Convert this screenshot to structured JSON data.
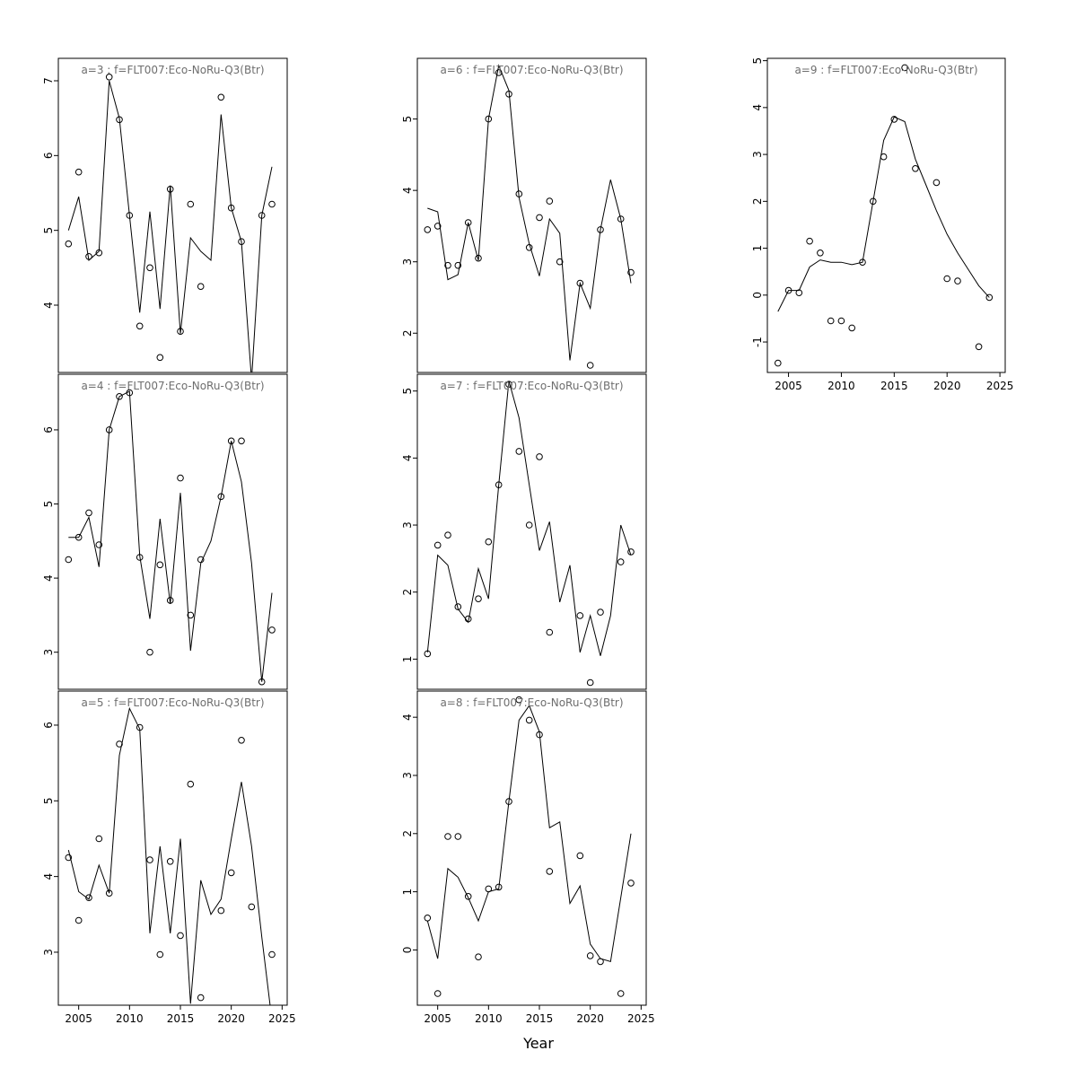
{
  "page": {
    "background": "#ffffff"
  },
  "chart_data": {
    "type": "line",
    "subtype": "trellis-multi-panel-line-scatter",
    "xlabel": "Year",
    "x": [
      2004,
      2005,
      2006,
      2007,
      2008,
      2009,
      2010,
      2011,
      2012,
      2013,
      2014,
      2015,
      2016,
      2017,
      2018,
      2019,
      2020,
      2021,
      2022,
      2023,
      2024
    ],
    "xlim": [
      2003,
      2025.5
    ],
    "xticks": [
      2005,
      2010,
      2015,
      2020,
      2025
    ],
    "colors": {
      "line": "#000000",
      "point": "#000000",
      "axis": "#000000",
      "title": "#6e6e6e",
      "tick_label": "#000000"
    },
    "panels": [
      {
        "id": "a3",
        "title": "a=3  :  f=FLT007:Eco-NoRu-Q3(Btr)",
        "row": 0,
        "col": 0,
        "ylim": [
          3.1,
          7.3
        ],
        "yticks": [
          4,
          5,
          6,
          7
        ],
        "show_x_labels": false,
        "points": [
          4.82,
          5.78,
          4.65,
          4.7,
          7.05,
          6.48,
          5.2,
          3.72,
          4.5,
          3.3,
          5.55,
          3.65,
          5.35,
          4.25,
          null,
          6.78,
          5.3,
          4.85,
          null,
          5.2,
          5.35
        ],
        "line": [
          5.0,
          5.45,
          4.6,
          4.72,
          7.0,
          6.5,
          5.2,
          3.9,
          5.25,
          3.95,
          5.6,
          3.62,
          4.9,
          4.72,
          4.6,
          6.55,
          5.3,
          4.85,
          3.0,
          5.2,
          5.85
        ]
      },
      {
        "id": "a4",
        "title": "a=4  :  f=FLT007:Eco-NoRu-Q3(Btr)",
        "row": 1,
        "col": 0,
        "ylim": [
          2.5,
          6.75
        ],
        "yticks": [
          3,
          4,
          5,
          6
        ],
        "show_x_labels": false,
        "points": [
          4.25,
          4.55,
          4.88,
          4.45,
          6.0,
          6.45,
          6.5,
          4.28,
          3.0,
          4.18,
          3.7,
          5.35,
          3.5,
          4.25,
          null,
          5.1,
          5.85,
          5.85,
          null,
          2.6,
          3.3
        ],
        "line": [
          4.55,
          4.55,
          4.82,
          4.15,
          6.0,
          6.45,
          6.52,
          4.3,
          3.45,
          4.8,
          3.65,
          5.15,
          3.02,
          4.2,
          4.5,
          5.1,
          5.85,
          5.3,
          4.2,
          2.6,
          3.8
        ]
      },
      {
        "id": "a5",
        "title": "a=5  :  f=FLT007:Eco-NoRu-Q3(Btr)",
        "row": 2,
        "col": 0,
        "ylim": [
          2.3,
          6.45
        ],
        "yticks": [
          3,
          4,
          5,
          6
        ],
        "show_x_labels": true,
        "points": [
          4.25,
          3.42,
          3.72,
          4.5,
          3.78,
          5.75,
          null,
          5.97,
          4.22,
          2.97,
          4.2,
          3.22,
          5.22,
          2.4,
          null,
          3.55,
          4.05,
          5.8,
          3.6,
          null,
          2.97
        ],
        "line": [
          4.35,
          3.8,
          3.7,
          4.15,
          3.78,
          5.6,
          6.22,
          5.95,
          3.25,
          4.4,
          3.25,
          4.5,
          2.32,
          3.95,
          3.5,
          3.7,
          4.5,
          5.25,
          4.4,
          3.2,
          2.1
        ]
      },
      {
        "id": "a6",
        "title": "a=6  :  f=FLT007:Eco-NoRu-Q3(Btr)",
        "row": 0,
        "col": 1,
        "ylim": [
          1.45,
          5.85
        ],
        "yticks": [
          2,
          3,
          4,
          5
        ],
        "show_x_labels": false,
        "points": [
          3.45,
          3.5,
          2.95,
          2.95,
          3.55,
          3.05,
          5.0,
          5.65,
          5.35,
          3.95,
          3.2,
          3.62,
          3.85,
          3.0,
          null,
          2.7,
          1.55,
          3.45,
          null,
          3.6,
          2.85
        ],
        "line": [
          3.75,
          3.7,
          2.75,
          2.82,
          3.55,
          3.02,
          5.0,
          5.75,
          5.4,
          3.9,
          3.25,
          2.8,
          3.6,
          3.4,
          1.62,
          2.7,
          2.35,
          3.45,
          4.15,
          3.6,
          2.7
        ]
      },
      {
        "id": "a7",
        "title": "a=7  :  f=FLT007:Eco-NoRu-Q3(Btr)",
        "row": 1,
        "col": 1,
        "ylim": [
          0.55,
          5.25
        ],
        "yticks": [
          1,
          2,
          3,
          4,
          5
        ],
        "show_x_labels": false,
        "points": [
          1.08,
          2.7,
          2.85,
          1.78,
          1.6,
          1.9,
          2.75,
          3.6,
          5.1,
          4.1,
          3.0,
          4.02,
          1.4,
          null,
          null,
          1.65,
          0.65,
          1.7,
          null,
          2.45,
          2.6
        ],
        "line": [
          1.1,
          2.55,
          2.4,
          1.75,
          1.55,
          2.35,
          1.9,
          3.6,
          5.15,
          4.6,
          3.6,
          2.62,
          3.05,
          1.85,
          2.4,
          1.1,
          1.65,
          1.05,
          1.65,
          3.0,
          2.55
        ]
      },
      {
        "id": "a8",
        "title": "a=8  :  f=FLT007:Eco-NoRu-Q3(Btr)",
        "row": 2,
        "col": 1,
        "ylim": [
          -0.95,
          4.45
        ],
        "yticks": [
          0,
          1,
          2,
          3,
          4
        ],
        "show_x_labels": true,
        "points": [
          0.55,
          -0.75,
          1.95,
          1.95,
          0.92,
          -0.12,
          1.05,
          1.08,
          2.55,
          4.3,
          3.95,
          3.7,
          1.35,
          null,
          null,
          1.62,
          -0.1,
          -0.2,
          null,
          -0.75,
          1.15
        ],
        "line": [
          0.5,
          -0.15,
          1.4,
          1.25,
          0.9,
          0.5,
          1.0,
          1.05,
          2.55,
          3.95,
          4.2,
          3.75,
          2.1,
          2.2,
          0.8,
          1.1,
          0.1,
          -0.15,
          -0.2,
          0.9,
          2.0
        ]
      },
      {
        "id": "a9",
        "title": "a=9  :  f=FLT007:Eco-NoRu-Q3(Btr)",
        "row": 0,
        "col": 2,
        "ylim": [
          -1.65,
          5.05
        ],
        "yticks": [
          -1,
          0,
          1,
          2,
          3,
          4,
          5
        ],
        "show_x_labels": true,
        "points": [
          -1.45,
          0.1,
          0.05,
          1.15,
          0.9,
          -0.55,
          -0.55,
          -0.7,
          0.7,
          2.0,
          2.95,
          3.75,
          4.85,
          2.7,
          null,
          2.4,
          0.35,
          0.3,
          null,
          -1.1,
          -0.05
        ],
        "line": [
          -0.35,
          0.1,
          0.1,
          0.6,
          0.75,
          0.7,
          0.7,
          0.65,
          0.7,
          2.0,
          3.3,
          3.8,
          3.7,
          2.9,
          2.35,
          1.8,
          1.3,
          0.9,
          0.55,
          0.2,
          -0.05
        ]
      }
    ]
  }
}
